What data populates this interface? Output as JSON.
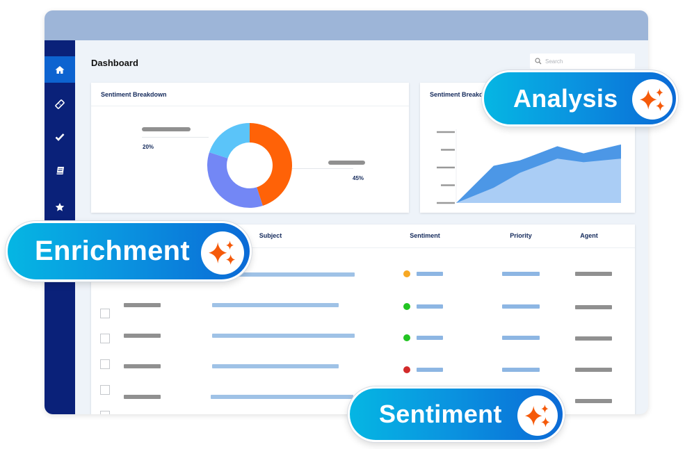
{
  "header": {
    "title": "Dashboard",
    "search_placeholder": "Search"
  },
  "sidebar": {
    "items": [
      {
        "icon": "home-icon",
        "active": true
      },
      {
        "icon": "ticket-icon",
        "active": false
      },
      {
        "icon": "check-icon",
        "active": false
      },
      {
        "icon": "book-icon",
        "active": false
      },
      {
        "icon": "star-icon",
        "active": false
      }
    ]
  },
  "donut_card": {
    "title": "Sentiment Breakdown",
    "left_label": "20%",
    "right_label": "45%"
  },
  "area_card": {
    "title": "Sentiment Breakdown"
  },
  "chart_data": [
    {
      "type": "pie",
      "donut": true,
      "title": "Sentiment Breakdown",
      "slices": [
        {
          "value": 45,
          "color": "#ff6207"
        },
        {
          "value": 35,
          "color": "#7387f5"
        },
        {
          "value": 20,
          "color": "#5bc4f9"
        }
      ],
      "data_labels": [
        "20%",
        "45%"
      ]
    },
    {
      "type": "area",
      "title": "Sentiment Breakdown",
      "stacked": false,
      "x": [
        0,
        1,
        1.7,
        2.7,
        3.4,
        4.4
      ],
      "xlim": [
        0,
        4.4
      ],
      "ylim": [
        0,
        4
      ],
      "y_ticks": 5,
      "tick_labels_shown": false,
      "series": [
        {
          "values": [
            0,
            2.1,
            2.4,
            3.2,
            2.8,
            3.3
          ],
          "color": "#4c97e6"
        },
        {
          "values": [
            0,
            0.86,
            1.7,
            2.5,
            2.3,
            2.5
          ],
          "color": "#aacdf5"
        }
      ]
    }
  ],
  "table": {
    "columns": {
      "subject": "Subject",
      "sentiment": "Sentiment",
      "priority": "Priority",
      "agent": "Agent"
    },
    "sentiment_colors": [
      "#f7a823",
      "#22c422",
      "#22c422",
      "#d22a2a"
    ]
  },
  "badges": [
    {
      "label": "Analysis",
      "icon": "sparkles-icon"
    },
    {
      "label": "Enrichment",
      "icon": "sparkles-icon"
    },
    {
      "label": "Sentiment",
      "icon": "sparkles-icon"
    }
  ],
  "colors": {
    "accent": "#0d63d0",
    "sidebar": "#0a2179",
    "sparkle": "#f55a0a"
  }
}
